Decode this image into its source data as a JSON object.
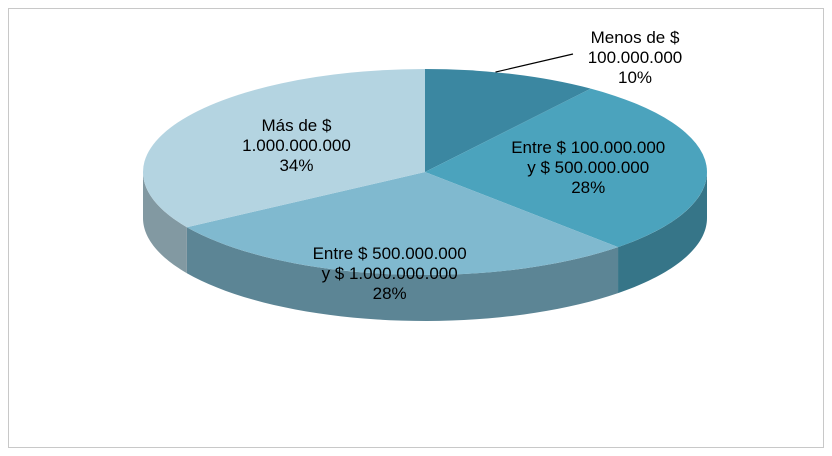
{
  "chart_data": {
    "type": "pie",
    "categories": [
      "Menos de $ 100.000.000",
      "Entre $ 100.000.000 y $ 500.000.000",
      "Entre $ 500.000.000 y $ 1.000.000.000",
      "Más de $ 1.000.000.000"
    ],
    "values": [
      10,
      28,
      28,
      34
    ],
    "value_labels": [
      "10%",
      "28%",
      "28%",
      "34%"
    ],
    "colors": [
      "#3b87a1",
      "#4ba3bd",
      "#80b9cf",
      "#b4d4e1"
    ]
  }
}
